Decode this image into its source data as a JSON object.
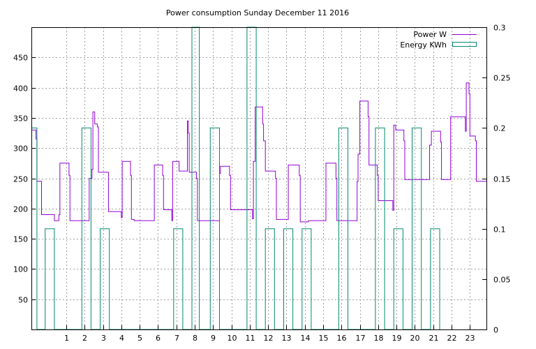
{
  "chart_data": {
    "type": "line",
    "title": "Power consumption Sunday December 11 2016",
    "xlabel": "",
    "ylabel": "",
    "y2label": "",
    "xlim": [
      -0.9,
      23.9
    ],
    "ylim": [
      0,
      500
    ],
    "y2lim": [
      0,
      0.3
    ],
    "x_ticks": [
      1,
      2,
      3,
      4,
      5,
      6,
      7,
      8,
      9,
      10,
      11,
      12,
      13,
      14,
      15,
      16,
      17,
      18,
      19,
      20,
      21,
      22,
      23
    ],
    "y_ticks": [
      50,
      100,
      150,
      200,
      250,
      300,
      350,
      400,
      450
    ],
    "y2_ticks": [
      0,
      0.05,
      0.1,
      0.15,
      0.2,
      0.25,
      0.3
    ],
    "grid": true,
    "legend": "top-right",
    "series": [
      {
        "name": "Power W",
        "axis": "y1",
        "color": "#9400d3",
        "style": "step",
        "points": [
          [
            -0.9,
            330
          ],
          [
            -0.7,
            330
          ],
          [
            -0.65,
            315
          ],
          [
            -0.6,
            245
          ],
          [
            -0.4,
            245
          ],
          [
            -0.35,
            190
          ],
          [
            0.3,
            190
          ],
          [
            0.35,
            180
          ],
          [
            0.55,
            180
          ],
          [
            0.6,
            190
          ],
          [
            0.65,
            275
          ],
          [
            1.1,
            275
          ],
          [
            1.15,
            255
          ],
          [
            1.2,
            180
          ],
          [
            2.2,
            180
          ],
          [
            2.25,
            250
          ],
          [
            2.4,
            265
          ],
          [
            2.45,
            360
          ],
          [
            2.55,
            340
          ],
          [
            2.7,
            335
          ],
          [
            2.75,
            260
          ],
          [
            3.2,
            260
          ],
          [
            3.3,
            195
          ],
          [
            3.95,
            195
          ],
          [
            4.0,
            185
          ],
          [
            4.05,
            278
          ],
          [
            4.45,
            278
          ],
          [
            4.5,
            255
          ],
          [
            4.55,
            182
          ],
          [
            4.7,
            180
          ],
          [
            5.75,
            180
          ],
          [
            5.8,
            272
          ],
          [
            6.2,
            272
          ],
          [
            6.25,
            255
          ],
          [
            6.3,
            198
          ],
          [
            6.7,
            198
          ],
          [
            6.75,
            180
          ],
          [
            6.8,
            278
          ],
          [
            7.1,
            278
          ],
          [
            7.15,
            262
          ],
          [
            7.55,
            262
          ],
          [
            7.6,
            345
          ],
          [
            7.65,
            325
          ],
          [
            7.7,
            260
          ],
          [
            8.05,
            260
          ],
          [
            8.1,
            250
          ],
          [
            8.15,
            180
          ],
          [
            9.3,
            180
          ],
          [
            9.35,
            258
          ],
          [
            9.4,
            270
          ],
          [
            9.85,
            270
          ],
          [
            9.9,
            255
          ],
          [
            9.95,
            198
          ],
          [
            11.1,
            198
          ],
          [
            11.15,
            183
          ],
          [
            11.2,
            278
          ],
          [
            11.3,
            368
          ],
          [
            11.65,
            368
          ],
          [
            11.7,
            340
          ],
          [
            11.75,
            312
          ],
          [
            11.85,
            262
          ],
          [
            12.3,
            262
          ],
          [
            12.4,
            250
          ],
          [
            12.45,
            182
          ],
          [
            13.05,
            182
          ],
          [
            13.1,
            272
          ],
          [
            13.65,
            272
          ],
          [
            13.7,
            255
          ],
          [
            13.75,
            178
          ],
          [
            14.15,
            178
          ],
          [
            14.2,
            180
          ],
          [
            15.1,
            180
          ],
          [
            15.15,
            275
          ],
          [
            15.65,
            275
          ],
          [
            15.7,
            250
          ],
          [
            15.75,
            180
          ],
          [
            16.8,
            180
          ],
          [
            16.85,
            245
          ],
          [
            16.9,
            290
          ],
          [
            17.0,
            378
          ],
          [
            17.4,
            378
          ],
          [
            17.45,
            352
          ],
          [
            17.5,
            272
          ],
          [
            17.9,
            272
          ],
          [
            17.95,
            255
          ],
          [
            18.0,
            213
          ],
          [
            18.75,
            213
          ],
          [
            18.8,
            197
          ],
          [
            18.85,
            338
          ],
          [
            18.95,
            330
          ],
          [
            19.35,
            330
          ],
          [
            19.4,
            312
          ],
          [
            19.45,
            248
          ],
          [
            20.75,
            248
          ],
          [
            20.8,
            305
          ],
          [
            20.9,
            328
          ],
          [
            21.35,
            328
          ],
          [
            21.4,
            310
          ],
          [
            21.45,
            248
          ],
          [
            21.9,
            248
          ],
          [
            21.95,
            352
          ],
          [
            22.7,
            352
          ],
          [
            22.75,
            328
          ],
          [
            22.8,
            408
          ],
          [
            22.9,
            408
          ],
          [
            22.95,
            390
          ],
          [
            23.0,
            320
          ],
          [
            23.25,
            320
          ],
          [
            23.3,
            312
          ],
          [
            23.35,
            245
          ],
          [
            23.9,
            245
          ]
        ]
      },
      {
        "name": "Energy KWh",
        "axis": "y2",
        "color": "#008b6b",
        "style": "step",
        "points": [
          [
            -0.9,
            0.2
          ],
          [
            -0.6,
            0.2
          ],
          [
            -0.6,
            0
          ],
          [
            -0.15,
            0
          ],
          [
            -0.15,
            0.1
          ],
          [
            0.35,
            0.1
          ],
          [
            0.35,
            0
          ],
          [
            1.85,
            0
          ],
          [
            1.85,
            0.2
          ],
          [
            2.35,
            0.2
          ],
          [
            2.35,
            0
          ],
          [
            2.85,
            0
          ],
          [
            2.85,
            0.1
          ],
          [
            3.35,
            0.1
          ],
          [
            3.35,
            0
          ],
          [
            6.85,
            0
          ],
          [
            6.85,
            0.1
          ],
          [
            7.35,
            0.1
          ],
          [
            7.35,
            0
          ],
          [
            7.85,
            0
          ],
          [
            7.85,
            0.3
          ],
          [
            8.25,
            0.3
          ],
          [
            8.25,
            0
          ],
          [
            8.85,
            0
          ],
          [
            8.85,
            0.2
          ],
          [
            9.35,
            0.2
          ],
          [
            9.35,
            0
          ],
          [
            10.85,
            0
          ],
          [
            10.85,
            0.3
          ],
          [
            11.35,
            0.3
          ],
          [
            11.35,
            0
          ],
          [
            11.85,
            0
          ],
          [
            11.85,
            0.1
          ],
          [
            12.35,
            0.1
          ],
          [
            12.35,
            0
          ],
          [
            12.85,
            0
          ],
          [
            12.85,
            0.1
          ],
          [
            13.35,
            0.1
          ],
          [
            13.35,
            0
          ],
          [
            13.85,
            0
          ],
          [
            13.85,
            0.1
          ],
          [
            14.35,
            0.1
          ],
          [
            14.35,
            0
          ],
          [
            15.85,
            0
          ],
          [
            15.85,
            0.2
          ],
          [
            16.35,
            0.2
          ],
          [
            16.35,
            0
          ],
          [
            17.85,
            0
          ],
          [
            17.85,
            0.2
          ],
          [
            18.35,
            0.2
          ],
          [
            18.35,
            0
          ],
          [
            18.85,
            0
          ],
          [
            18.85,
            0.1
          ],
          [
            19.35,
            0.1
          ],
          [
            19.35,
            0
          ],
          [
            19.85,
            0
          ],
          [
            19.85,
            0.2
          ],
          [
            20.35,
            0.2
          ],
          [
            20.35,
            0
          ],
          [
            20.85,
            0
          ],
          [
            20.85,
            0.1
          ],
          [
            21.35,
            0.1
          ],
          [
            21.35,
            0
          ]
        ]
      }
    ]
  }
}
